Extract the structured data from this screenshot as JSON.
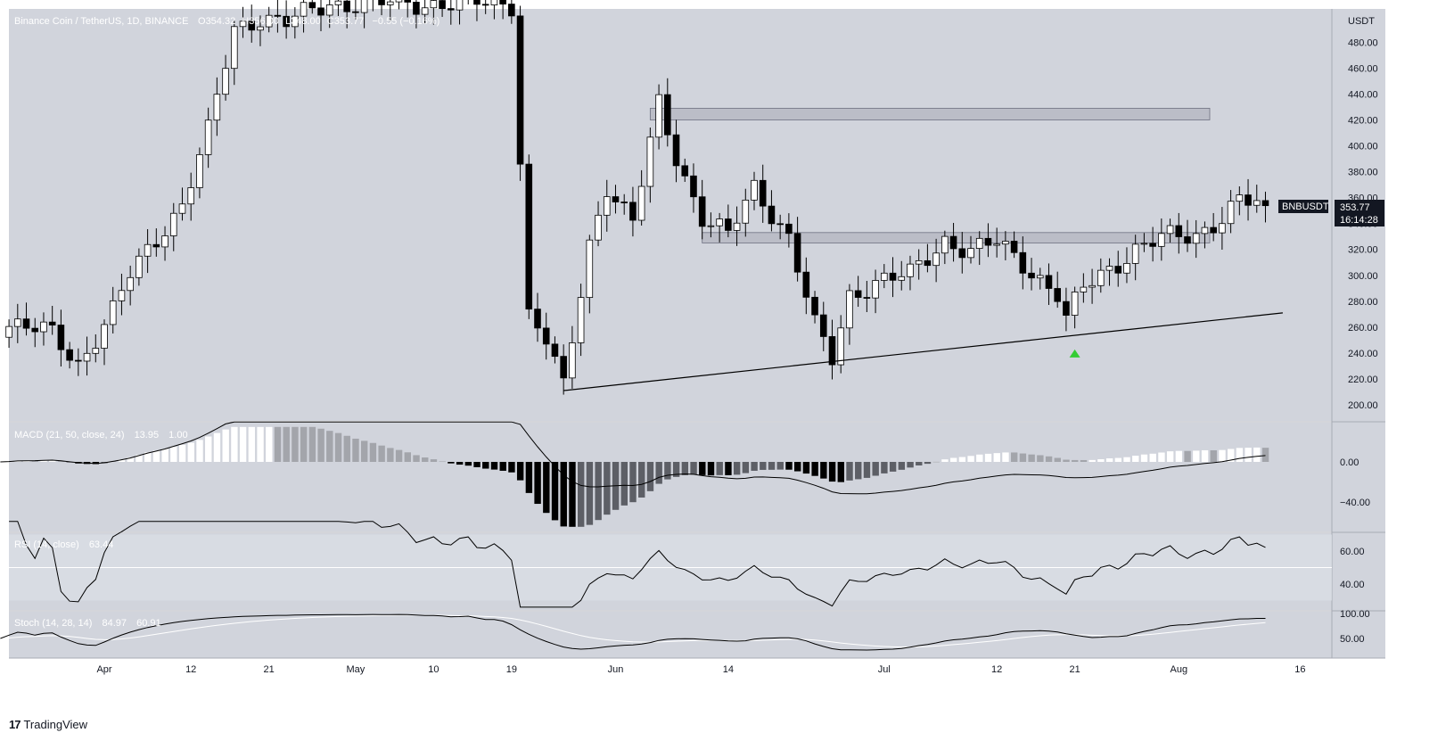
{
  "chart_data": {
    "type": "candlestick",
    "symbol_header": "Binance Coin / TetherUS, 1D, BINANCE",
    "ohlc_header": {
      "o": "354.32",
      "h": "356.00",
      "l": "348.00",
      "c": "353.77",
      "chg": "−0.55 (−0.16%)"
    },
    "ohlc_prefix": {
      "o": "O",
      "h": "H",
      "l": "L",
      "c": "C"
    },
    "price_axis_unit": "USDT",
    "price_ticks": [
      "480.00",
      "460.00",
      "440.00",
      "420.00",
      "400.00",
      "380.00",
      "360.00",
      "340.00",
      "320.00",
      "300.00",
      "280.00",
      "260.00",
      "240.00",
      "220.00",
      "200.00"
    ],
    "price_ylim": [
      190,
      510
    ],
    "x_ticks": [
      "Apr",
      "12",
      "21",
      "May",
      "10",
      "19",
      "Jun",
      "14",
      "Jul",
      "12",
      "21",
      "Aug",
      "16"
    ],
    "tag_symbol": "BNBUSDT",
    "tag_price": "353.77",
    "tag_countdown": "16:14:28",
    "horizontal_zones": [
      {
        "name": "resistance",
        "low": 420,
        "high": 429
      },
      {
        "name": "support",
        "low": 325,
        "high": 333
      }
    ],
    "trendline": {
      "from": {
        "date": "2021-05-23",
        "price": 211
      },
      "to": {
        "date": "2021-08-14",
        "price": 271
      }
    },
    "signal_marker": {
      "date": "2021-07-21",
      "price": 240,
      "type": "arrow-up",
      "color": "#33cc33"
    },
    "series": [
      {
        "name": "price_path_approx",
        "points": [
          [
            "2021-03-20",
            262
          ],
          [
            "2021-03-25",
            255
          ],
          [
            "2021-03-28",
            232
          ],
          [
            "2021-04-01",
            272
          ],
          [
            "2021-04-03",
            300
          ],
          [
            "2021-04-07",
            338
          ],
          [
            "2021-04-09",
            355
          ],
          [
            "2021-04-12",
            410
          ],
          [
            "2021-04-15",
            490
          ],
          [
            "2021-04-18",
            500
          ],
          [
            "2021-04-21",
            495
          ],
          [
            "2021-04-26",
            510
          ],
          [
            "2021-05-17",
            510
          ],
          [
            "2021-05-19",
            270
          ],
          [
            "2021-05-21",
            250
          ],
          [
            "2021-05-23",
            212
          ],
          [
            "2021-05-26",
            325
          ],
          [
            "2021-05-28",
            370
          ],
          [
            "2021-05-31",
            340
          ],
          [
            "2021-06-03",
            432
          ],
          [
            "2021-06-05",
            392
          ],
          [
            "2021-06-08",
            345
          ],
          [
            "2021-06-11",
            330
          ],
          [
            "2021-06-14",
            368
          ],
          [
            "2021-06-18",
            330
          ],
          [
            "2021-06-21",
            260
          ],
          [
            "2021-06-23",
            235
          ],
          [
            "2021-06-25",
            285
          ],
          [
            "2021-06-28",
            295
          ],
          [
            "2021-07-02",
            300
          ],
          [
            "2021-07-06",
            328
          ],
          [
            "2021-07-09",
            318
          ],
          [
            "2021-07-12",
            325
          ],
          [
            "2021-07-15",
            310
          ],
          [
            "2021-07-19",
            285
          ],
          [
            "2021-07-20",
            265
          ],
          [
            "2021-07-22",
            290
          ],
          [
            "2021-07-25",
            306
          ],
          [
            "2021-07-28",
            320
          ],
          [
            "2021-07-31",
            328
          ],
          [
            "2021-08-04",
            332
          ],
          [
            "2021-08-07",
            345
          ],
          [
            "2021-08-09",
            357
          ],
          [
            "2021-08-12",
            353.77
          ]
        ]
      }
    ],
    "indicators": {
      "macd": {
        "label": "MACD (21, 50, close, 24)",
        "hist": "13.95",
        "signal": "1.00",
        "ticks": [
          "0.00",
          "−40.00"
        ],
        "ylim": [
          -70,
          40
        ]
      },
      "rsi": {
        "label": "RSI (14, close)",
        "value": "63.44",
        "ticks": [
          "60.00",
          "40.00"
        ],
        "ylim": [
          20,
          80
        ]
      },
      "stoch": {
        "label": "Stoch (14, 28, 14)",
        "k": "84.97",
        "d": "60.91",
        "ticks": [
          "100.00",
          "50.00"
        ],
        "ylim": [
          0,
          110
        ]
      }
    },
    "colors": {
      "panel": "#d1d4dc",
      "up_body": "#ffffff",
      "down_body": "#000000",
      "zone": "#b7b9c3",
      "line": "#000000"
    }
  },
  "footer": {
    "brand_mark": "17",
    "brand_name": "TradingView"
  }
}
